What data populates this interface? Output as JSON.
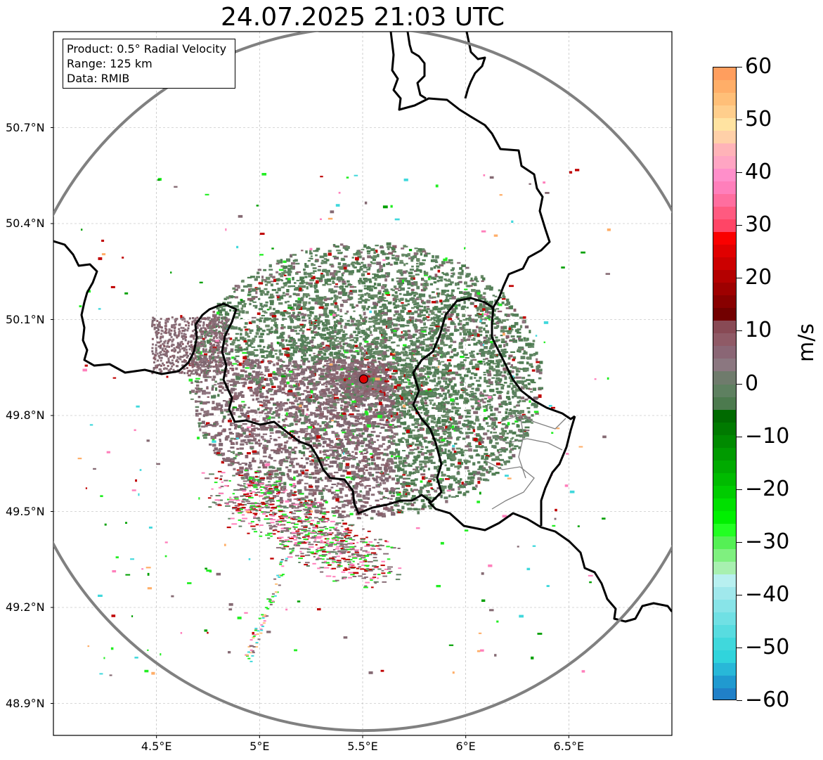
{
  "title": "24.07.2025 21:03 UTC",
  "info": {
    "product": "Product: 0.5° Radial Velocity",
    "range": "Range: 125 km",
    "data": "Data: RMIB"
  },
  "map": {
    "lon_range": [
      4.0,
      7.0
    ],
    "lat_range": [
      48.8,
      51.0
    ],
    "x_ticks": [
      "4.5°E",
      "5°E",
      "5.5°E",
      "6°E",
      "6.5°E"
    ],
    "y_ticks": [
      "50.7°N",
      "50.4°N",
      "50.1°N",
      "49.8°N",
      "49.5°N",
      "49.2°N",
      "48.9°N"
    ],
    "radar_site": {
      "lon": 5.505,
      "lat": 49.914
    },
    "range_ring_km": 125,
    "colors": {
      "ring": "#808080",
      "site": "#e00000",
      "border": "#000000",
      "grid": "#b0b0b0"
    }
  },
  "colorbar": {
    "label": "m/s",
    "min": -60,
    "max": 60,
    "ticks": [
      "60",
      "50",
      "40",
      "30",
      "20",
      "10",
      "0",
      "−10",
      "−20",
      "−30",
      "−40",
      "−50",
      "−60"
    ],
    "palette_top_to_bottom": [
      "#ff9e5e",
      "#ffae68",
      "#ffbf78",
      "#ffce8c",
      "#ffe3a1",
      "#ffd0a8",
      "#ffb3b8",
      "#ffa5c3",
      "#ff8fca",
      "#ff7fbb",
      "#ff6e9f",
      "#ff5a80",
      "#ff4566",
      "#fa0000",
      "#e00000",
      "#cc0000",
      "#b40000",
      "#9e0000",
      "#880000",
      "#720000",
      "#884a55",
      "#8f5a66",
      "#8a6675",
      "#8b7780",
      "#6f7b6c",
      "#5e8060",
      "#4c7a4e",
      "#006a00",
      "#007a00",
      "#008a00",
      "#009a00",
      "#00aa00",
      "#00bb00",
      "#00cc00",
      "#00e000",
      "#00f000",
      "#22ff22",
      "#55f055",
      "#7ff07f",
      "#a8f0b0",
      "#b8f0f0",
      "#a0e8ec",
      "#88e4e8",
      "#70e0e4",
      "#58dce0",
      "#40d8dc",
      "#30d4dc",
      "#28b8d8",
      "#209ad0",
      "#2080c8"
    ]
  }
}
